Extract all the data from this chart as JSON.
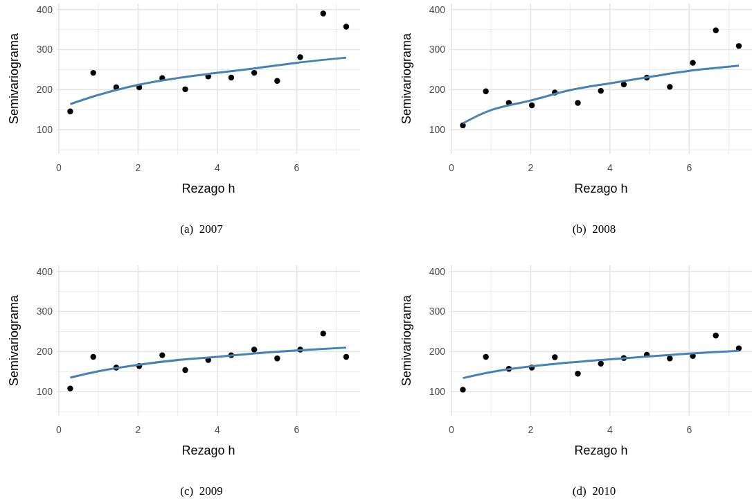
{
  "chart_data": [
    {
      "type": "scatter",
      "title": "(a)  2007",
      "xlabel": "Rezago h",
      "ylabel": "Semivariograma",
      "xlim": [
        -0.05,
        7.6
      ],
      "ylim": [
        40,
        415
      ],
      "xticks": [
        0,
        2,
        4,
        6
      ],
      "yticks": [
        100,
        200,
        300,
        400
      ],
      "grid": true,
      "series": [
        {
          "marker": "circle",
          "color": "#000000",
          "x": [
            0.29,
            0.87,
            1.45,
            2.03,
            2.61,
            3.19,
            3.77,
            4.35,
            4.93,
            5.51,
            6.09,
            6.67,
            7.25
          ],
          "values": [
            146,
            242,
            206,
            206,
            229,
            201,
            233,
            230,
            242,
            222,
            281,
            390,
            357
          ]
        },
        {
          "type": "line",
          "color": "#4682b4",
          "line_style": "solid",
          "x": [
            0.29,
            1,
            2,
            3,
            4,
            5,
            6,
            7.25
          ],
          "values": [
            164,
            187,
            212,
            229,
            242,
            254,
            267,
            280
          ]
        }
      ]
    },
    {
      "type": "scatter",
      "title": "(b)  2008",
      "xlabel": "Rezago h",
      "ylabel": "Semivariograma",
      "xlim": [
        -0.05,
        7.6
      ],
      "ylim": [
        40,
        415
      ],
      "xticks": [
        0,
        2,
        4,
        6
      ],
      "yticks": [
        100,
        200,
        300,
        400
      ],
      "grid": true,
      "series": [
        {
          "marker": "circle",
          "color": "#000000",
          "x": [
            0.29,
            0.87,
            1.45,
            2.03,
            2.61,
            3.19,
            3.77,
            4.35,
            4.93,
            5.51,
            6.09,
            6.67,
            7.25
          ],
          "values": [
            111,
            196,
            167,
            161,
            193,
            167,
            197,
            213,
            230,
            207,
            267,
            348,
            309
          ]
        },
        {
          "type": "line",
          "color": "#4682b4",
          "line_style": "solid",
          "x": [
            0.29,
            1,
            2,
            3,
            4,
            5,
            6,
            7.25
          ],
          "values": [
            116,
            149,
            173,
            199,
            216,
            232,
            247,
            260
          ]
        }
      ]
    },
    {
      "type": "scatter",
      "title": "(c)  2009",
      "xlabel": "Rezago h",
      "ylabel": "Semivariograma",
      "xlim": [
        -0.05,
        7.6
      ],
      "ylim": [
        40,
        415
      ],
      "xticks": [
        0,
        2,
        4,
        6
      ],
      "yticks": [
        100,
        200,
        300,
        400
      ],
      "grid": true,
      "series": [
        {
          "marker": "circle",
          "color": "#000000",
          "x": [
            0.29,
            0.87,
            1.45,
            2.03,
            2.61,
            3.19,
            3.77,
            4.35,
            4.93,
            5.51,
            6.09,
            6.67,
            7.25
          ],
          "values": [
            108,
            187,
            160,
            164,
            191,
            154,
            179,
            191,
            205,
            183,
            205,
            245,
            187
          ]
        },
        {
          "type": "line",
          "color": "#4682b4",
          "line_style": "solid",
          "x": [
            0.29,
            1,
            2,
            3,
            4,
            5,
            6,
            7.25
          ],
          "values": [
            135,
            151,
            167,
            179,
            187,
            196,
            203,
            210
          ]
        }
      ]
    },
    {
      "type": "scatter",
      "title": "(d)  2010",
      "xlabel": "Rezago h",
      "ylabel": "Semivariograma",
      "xlim": [
        -0.05,
        7.6
      ],
      "ylim": [
        40,
        415
      ],
      "xticks": [
        0,
        2,
        4,
        6
      ],
      "yticks": [
        100,
        200,
        300,
        400
      ],
      "grid": true,
      "series": [
        {
          "marker": "circle",
          "color": "#000000",
          "x": [
            0.29,
            0.87,
            1.45,
            2.03,
            2.61,
            3.19,
            3.77,
            4.35,
            4.93,
            5.51,
            6.09,
            6.67,
            7.25
          ],
          "values": [
            105,
            187,
            157,
            160,
            186,
            145,
            170,
            184,
            192,
            183,
            189,
            240,
            208
          ]
        },
        {
          "type": "line",
          "color": "#4682b4",
          "line_style": "solid",
          "x": [
            0.29,
            1,
            2,
            3,
            4,
            5,
            6,
            7.25
          ],
          "values": [
            134,
            149,
            163,
            173,
            181,
            188,
            195,
            202
          ]
        }
      ]
    }
  ]
}
